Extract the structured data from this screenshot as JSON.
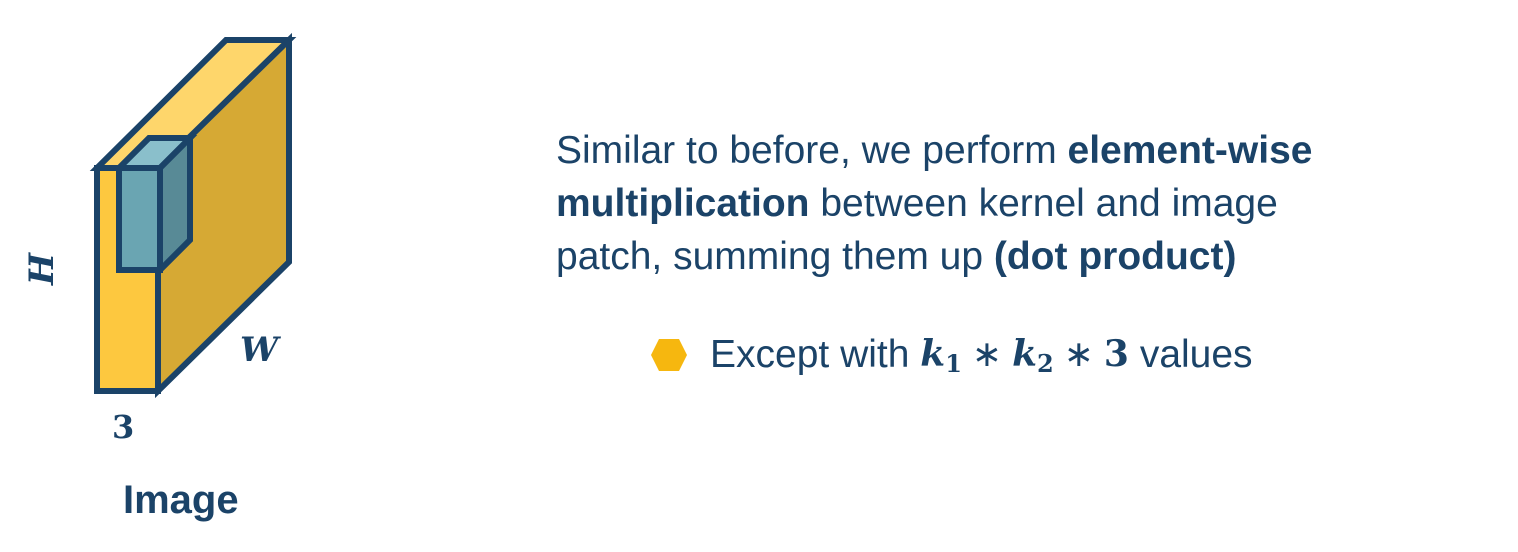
{
  "diagram": {
    "height_label": "H",
    "width_label": "W",
    "depth_label": "3",
    "caption": "Image"
  },
  "text": {
    "line1_prefix": "Similar to before, we perform ",
    "line1_bold": "element-wise",
    "line2_bold": "multiplication",
    "line2_rest": " between kernel and image",
    "line3_prefix": "patch, summing them up ",
    "line3_bold": "(dot product)"
  },
  "bullet": {
    "prefix": "Except with ",
    "k1": "k",
    "k1_sub": "1",
    "times1": "∗",
    "k2": "k",
    "k2_sub": "2",
    "times2": "∗",
    "three": "3",
    "suffix": " values"
  },
  "colors": {
    "navy": "#1b4368",
    "yellow_front": "#fdc83f",
    "yellow_top": "#fed66b",
    "yellow_side": "#d6a934",
    "teal_front": "#6aa5b2",
    "teal_top": "#8abfcb",
    "teal_side": "#588a96",
    "bullet_hex": "#f6b70f"
  }
}
